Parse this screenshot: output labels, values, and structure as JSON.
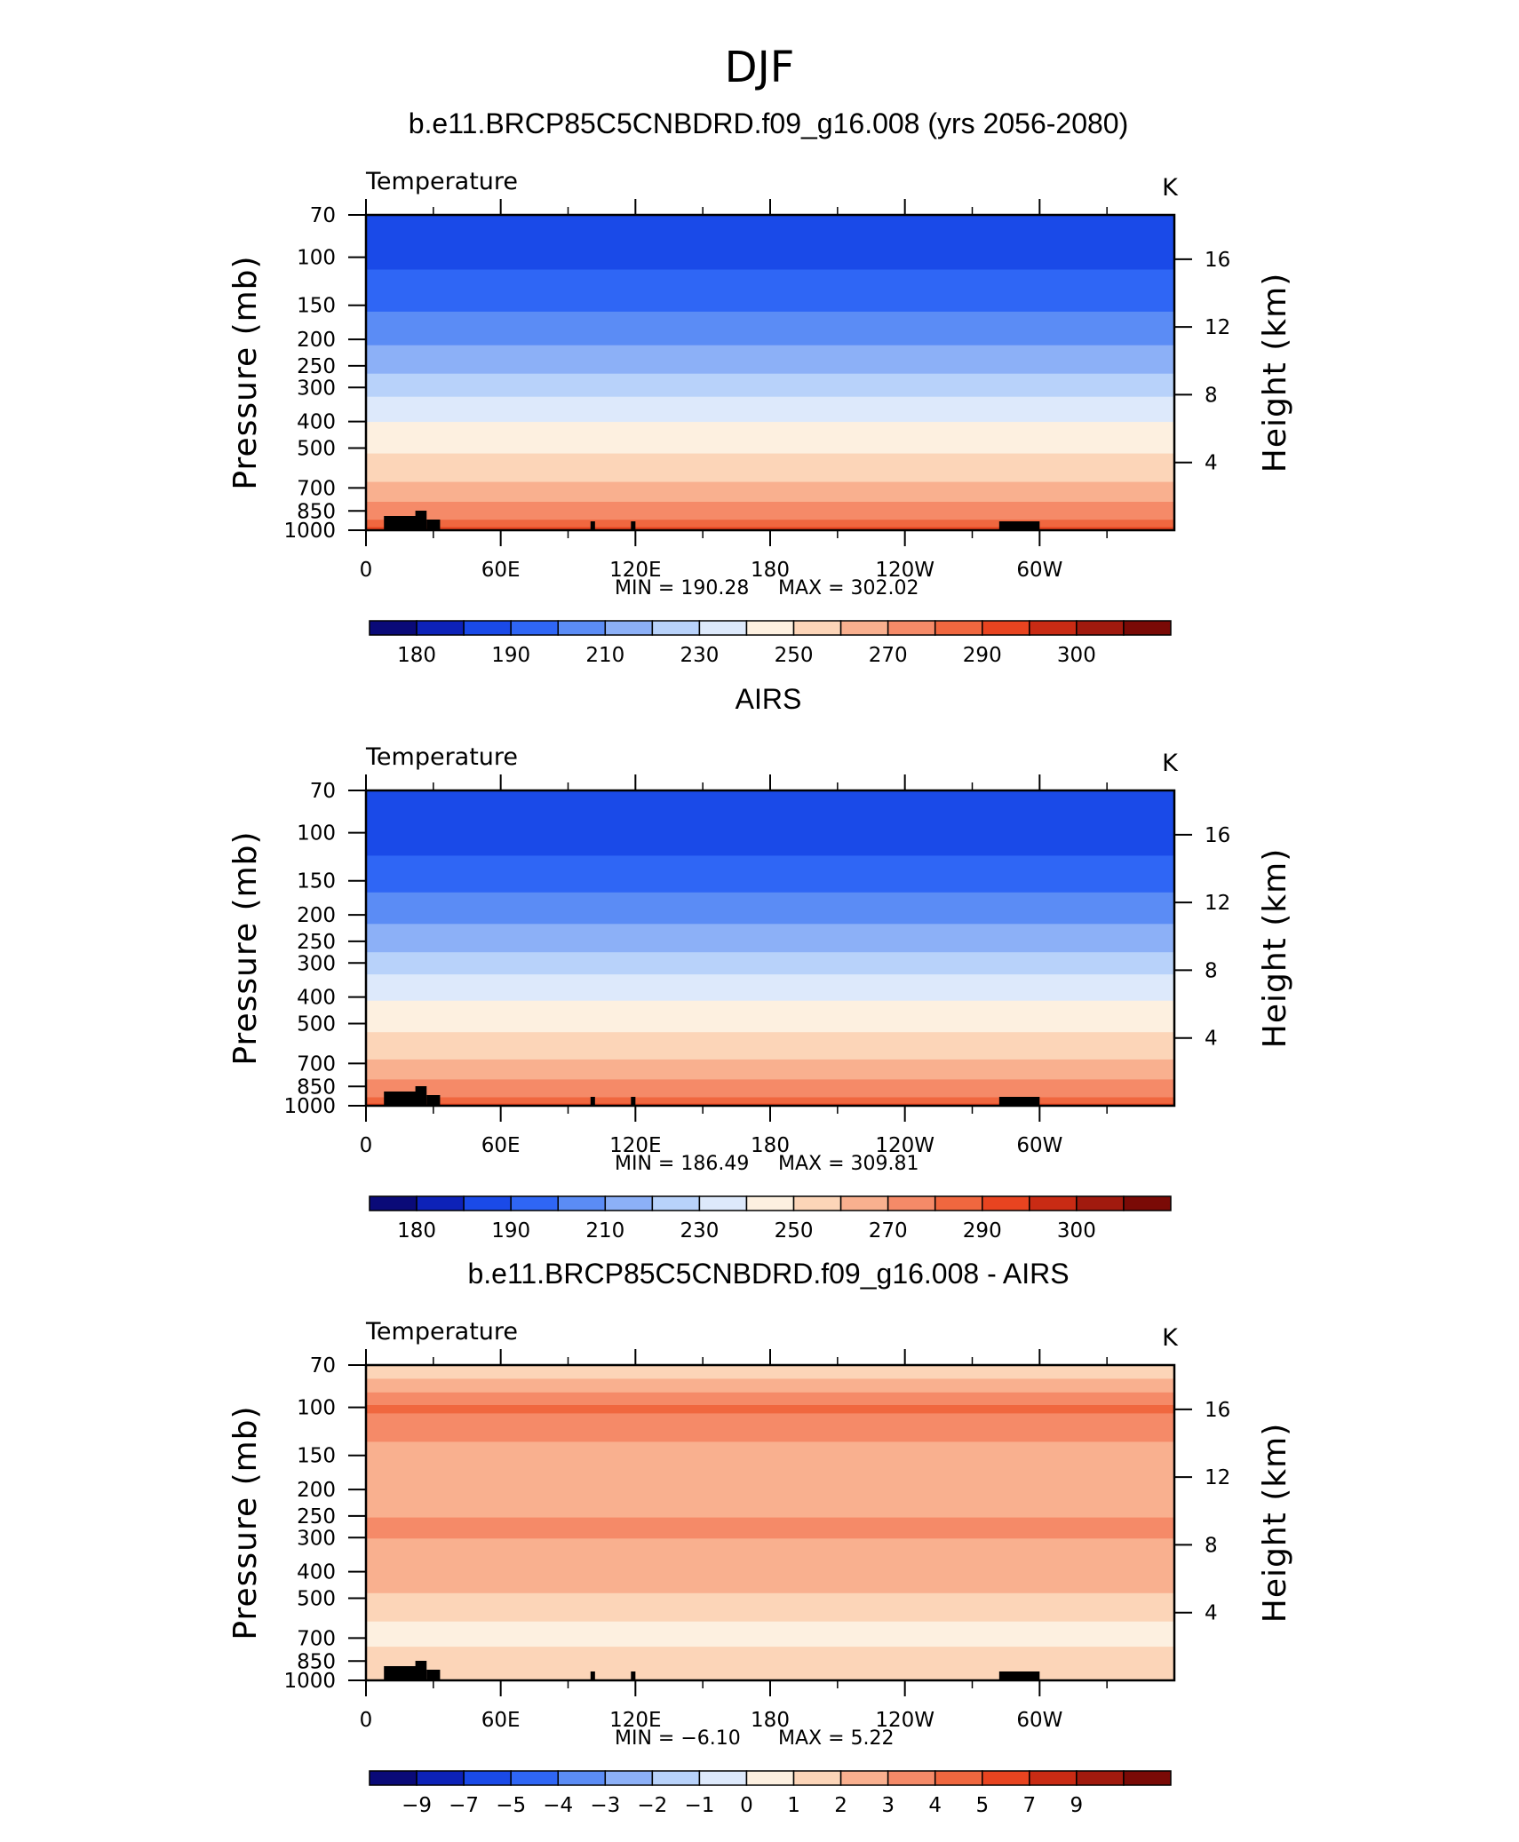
{
  "figure": {
    "title": "DJF"
  },
  "colorbar_fills": {
    "absolute": [
      "#0a0a78",
      "#0d22b8",
      "#1a4ae8",
      "#2f66f5",
      "#5b8cf5",
      "#8cb0f7",
      "#b8d2fa",
      "#dde9fb",
      "#fdf0e0",
      "#fcd5b8",
      "#f9b08f",
      "#f58a68",
      "#f0673f",
      "#e84420",
      "#c92b14",
      "#a11a0e",
      "#7a0a06"
    ],
    "difference": [
      "#0a0a78",
      "#0d22b8",
      "#1a4ae8",
      "#2f66f5",
      "#5b8cf5",
      "#8cb0f7",
      "#b8d2fa",
      "#dde9fb",
      "#fdf0e0",
      "#fcd5b8",
      "#f9b08f",
      "#f58a68",
      "#f0673f",
      "#e84420",
      "#c92b14",
      "#a11a0e",
      "#7a0a06"
    ]
  },
  "panels": [
    {
      "title": "b.e11.BRCP85C5CNBDRD.f09_g16.008 (yrs 2056-2080)",
      "variable": "Temperature",
      "units": "K",
      "min_text": "MIN  =  190.28",
      "max_text": "MAX  =  302.02",
      "colorbar_labels": [
        "180",
        "190",
        "210",
        "230",
        "250",
        "270",
        "290",
        "300"
      ]
    },
    {
      "title": "AIRS",
      "variable": "Temperature",
      "units": "K",
      "min_text": "MIN  =  186.49",
      "max_text": "MAX  =  309.81",
      "colorbar_labels": [
        "180",
        "190",
        "210",
        "230",
        "250",
        "270",
        "290",
        "300"
      ]
    },
    {
      "title": "b.e11.BRCP85C5CNBDRD.f09_g16.008 - AIRS",
      "variable": "Temperature",
      "units": "K",
      "min_text": "MIN  =   −6.10",
      "max_text": "MAX  =     5.22",
      "colorbar_labels": [
        "−9",
        "−7",
        "−5",
        "−4",
        "−3",
        "−2",
        "−1",
        "0",
        "1",
        "2",
        "3",
        "4",
        "5",
        "7",
        "9"
      ]
    }
  ],
  "chart_data": [
    {
      "type": "heatmap",
      "title": "b.e11.BRCP85C5CNBDRD.f09_g16.008 (yrs 2056-2080)",
      "variable": "Temperature",
      "units": "K",
      "xlabel": "",
      "ylabel": "Pressure (mb)",
      "y2label": "Height (km)",
      "x_tick_labels": [
        "0",
        "60E",
        "120E",
        "180",
        "120W",
        "60W"
      ],
      "x_range_deg": [
        0,
        360
      ],
      "y_ticks_mb": [
        70,
        100,
        150,
        200,
        250,
        300,
        400,
        500,
        700,
        850,
        1000
      ],
      "y_range_mb": [
        70,
        1000
      ],
      "y_scale": "log",
      "y2_ticks_km": [
        4,
        8,
        12,
        16
      ],
      "levels": [
        180,
        190,
        200,
        210,
        220,
        230,
        240,
        250,
        260,
        270,
        280,
        290,
        295,
        300
      ],
      "min": 190.28,
      "max": 302.02,
      "approx_profile_by_pressure": [
        [
          70,
          196
        ],
        [
          100,
          197
        ],
        [
          130,
          205
        ],
        [
          170,
          212
        ],
        [
          220,
          222
        ],
        [
          280,
          232
        ],
        [
          340,
          243
        ],
        [
          420,
          252
        ],
        [
          520,
          260
        ],
        [
          650,
          269
        ],
        [
          760,
          278
        ],
        [
          870,
          286
        ],
        [
          950,
          293
        ],
        [
          1000,
          298
        ]
      ],
      "colorbar_labels": [
        "180",
        "190",
        "210",
        "230",
        "250",
        "270",
        "290",
        "300"
      ]
    },
    {
      "type": "heatmap",
      "title": "AIRS",
      "variable": "Temperature",
      "units": "K",
      "xlabel": "",
      "ylabel": "Pressure (mb)",
      "y2label": "Height (km)",
      "x_tick_labels": [
        "0",
        "60E",
        "120E",
        "180",
        "120W",
        "60W"
      ],
      "x_range_deg": [
        0,
        360
      ],
      "y_ticks_mb": [
        70,
        100,
        150,
        200,
        250,
        300,
        400,
        500,
        700,
        850,
        1000
      ],
      "y_range_mb": [
        70,
        1000
      ],
      "y_scale": "log",
      "y2_ticks_km": [
        4,
        8,
        12,
        16
      ],
      "levels": [
        180,
        190,
        200,
        210,
        220,
        230,
        240,
        250,
        260,
        270,
        280,
        290,
        295,
        300
      ],
      "min": 186.49,
      "max": 309.81,
      "approx_profile_by_pressure": [
        [
          70,
          195
        ],
        [
          100,
          192
        ],
        [
          130,
          203
        ],
        [
          170,
          211
        ],
        [
          220,
          221
        ],
        [
          280,
          231
        ],
        [
          340,
          242
        ],
        [
          420,
          251
        ],
        [
          520,
          259
        ],
        [
          650,
          268
        ],
        [
          760,
          277
        ],
        [
          870,
          285
        ],
        [
          950,
          292
        ],
        [
          1000,
          298
        ]
      ],
      "colorbar_labels": [
        "180",
        "190",
        "210",
        "230",
        "250",
        "270",
        "290",
        "300"
      ]
    },
    {
      "type": "heatmap",
      "title": "b.e11.BRCP85C5CNBDRD.f09_g16.008 - AIRS",
      "variable": "Temperature",
      "units": "K",
      "xlabel": "",
      "ylabel": "Pressure (mb)",
      "y2label": "Height (km)",
      "x_tick_labels": [
        "0",
        "60E",
        "120E",
        "180",
        "120W",
        "60W"
      ],
      "x_range_deg": [
        0,
        360
      ],
      "y_ticks_mb": [
        70,
        100,
        150,
        200,
        250,
        300,
        400,
        500,
        700,
        850,
        1000
      ],
      "y_range_mb": [
        70,
        1000
      ],
      "y_scale": "log",
      "y2_ticks_km": [
        4,
        8,
        12,
        16
      ],
      "levels": [
        -9,
        -7,
        -5,
        -4,
        -3,
        -2,
        -1,
        0,
        1,
        2,
        3,
        4,
        5,
        7,
        9
      ],
      "min": -6.1,
      "max": 5.22,
      "approx_profile_by_pressure": [
        [
          70,
          1.0
        ],
        [
          100,
          4.2
        ],
        [
          150,
          2.5
        ],
        [
          200,
          2.0
        ],
        [
          270,
          3.3
        ],
        [
          350,
          2.6
        ],
        [
          450,
          2.2
        ],
        [
          550,
          1.5
        ],
        [
          650,
          0.6
        ],
        [
          800,
          1.2
        ],
        [
          950,
          1.4
        ]
      ],
      "colorbar_labels": [
        "−9",
        "−7",
        "−5",
        "−4",
        "−3",
        "−2",
        "−1",
        "0",
        "1",
        "2",
        "3",
        "4",
        "5",
        "7",
        "9"
      ]
    }
  ]
}
